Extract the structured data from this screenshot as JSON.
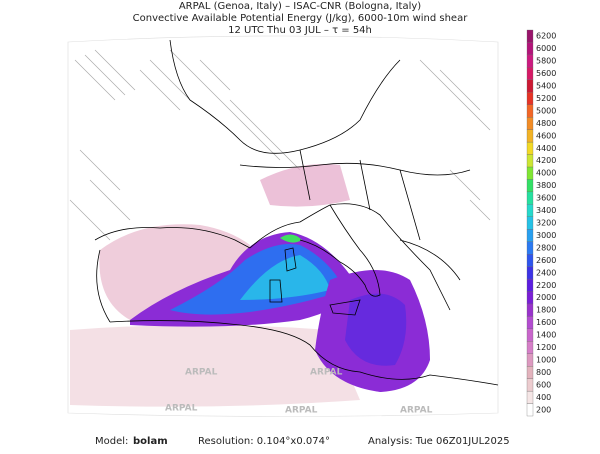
{
  "header": {
    "line1": "ARPAL (Genoa, Italy)  –  ISAC-CNR (Bologna, Italy)",
    "line2": "Convective Available Potential Energy (J/kg), 6000-10m wind shear",
    "line3": "12 UTC Thu 03 JUL  –  τ = 54h"
  },
  "colorbar": {
    "labels": [
      200,
      400,
      600,
      800,
      1000,
      1200,
      1400,
      1600,
      1800,
      2000,
      2200,
      2400,
      2600,
      2800,
      3000,
      3200,
      3400,
      3600,
      3800,
      4000,
      4200,
      4400,
      4600,
      4800,
      5000,
      5200,
      5400,
      5600,
      5800,
      6000,
      6200
    ],
    "colors": [
      "#ffffff",
      "#f5e6e6",
      "#eccccf",
      "#e3b3bd",
      "#dd99c0",
      "#d67fc8",
      "#c966cc",
      "#b34dd1",
      "#9933cc",
      "#7a1fd6",
      "#5c1ee0",
      "#3d33e6",
      "#2e55ee",
      "#2b7af2",
      "#29a0f0",
      "#26c2e6",
      "#26d9cc",
      "#26e0a0",
      "#33e066",
      "#80e633",
      "#cce633",
      "#f2d926",
      "#f2b326",
      "#f28c26",
      "#f26626",
      "#e63326",
      "#cc1a33",
      "#d61a66",
      "#cc1a80",
      "#b3147a",
      "#99146b"
    ]
  },
  "watermarks": [
    "ARPAL",
    "ARPAL",
    "ARPAL",
    "ARPAL",
    "ARPAL"
  ],
  "footer": {
    "model_label": "Model:",
    "model": "bolam",
    "resolution": "Resolution: 0.104°x0.074°",
    "analysis": "Analysis: Tue 06Z01JUL2025"
  }
}
